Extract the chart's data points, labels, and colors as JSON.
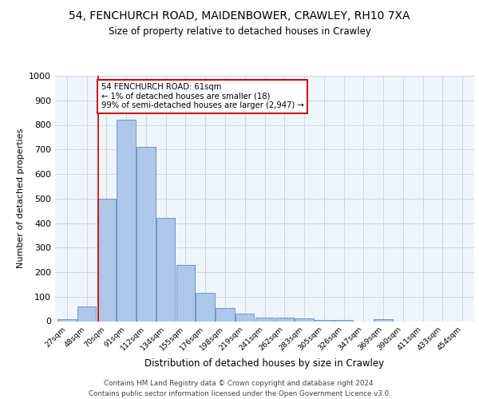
{
  "title": "54, FENCHURCH ROAD, MAIDENBOWER, CRAWLEY, RH10 7XA",
  "subtitle": "Size of property relative to detached houses in Crawley",
  "xlabel": "Distribution of detached houses by size in Crawley",
  "ylabel": "Number of detached properties",
  "bar_labels": [
    "27sqm",
    "48sqm",
    "70sqm",
    "91sqm",
    "112sqm",
    "134sqm",
    "155sqm",
    "176sqm",
    "198sqm",
    "219sqm",
    "241sqm",
    "262sqm",
    "283sqm",
    "305sqm",
    "326sqm",
    "347sqm",
    "369sqm",
    "390sqm",
    "411sqm",
    "433sqm",
    "454sqm"
  ],
  "bar_values": [
    8,
    60,
    500,
    820,
    710,
    420,
    230,
    115,
    55,
    30,
    15,
    15,
    10,
    6,
    5,
    0,
    8,
    0,
    0,
    0,
    0
  ],
  "bar_color": "#aec6e8",
  "bar_edge_color": "#5a8fc2",
  "grid_color": "#c8d8e8",
  "background_color": "#f0f5fc",
  "vline_color": "#cc0000",
  "annotation_text": "54 FENCHURCH ROAD: 61sqm\n← 1% of detached houses are smaller (18)\n99% of semi-detached houses are larger (2,947) →",
  "annotation_box_color": "#ffffff",
  "annotation_box_edge": "#cc0000",
  "ylim": [
    0,
    1000
  ],
  "yticks": [
    0,
    100,
    200,
    300,
    400,
    500,
    600,
    700,
    800,
    900,
    1000
  ],
  "footer": "Contains HM Land Registry data © Crown copyright and database right 2024.\nContains public sector information licensed under the Open Government Licence v3.0."
}
